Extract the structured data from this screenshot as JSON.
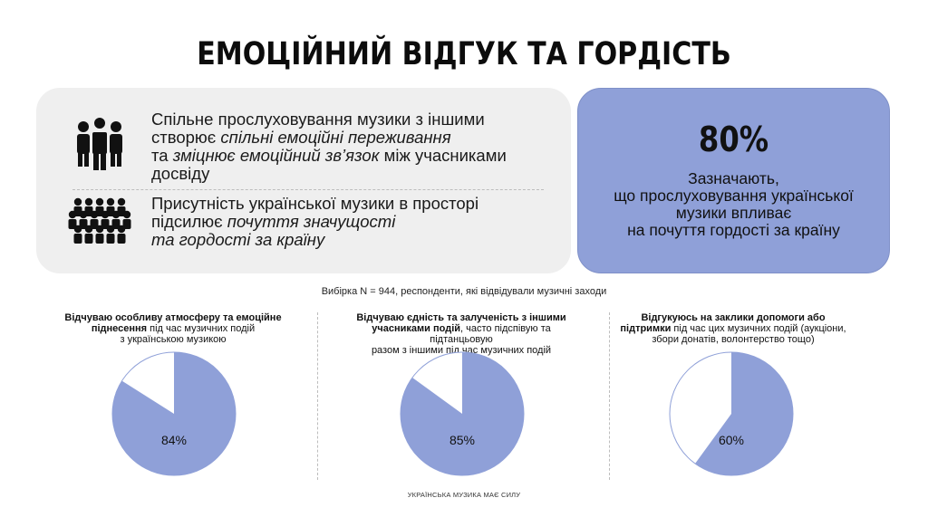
{
  "title": "ЕМОЦІЙНИЙ ВІДГУК ТА ГОРДІСТЬ",
  "left_panel": {
    "row1": {
      "icon": "group-of-people-icon",
      "line1": "Спільне прослуховування музики з іншими",
      "line2_plain": "створює ",
      "line2_italic": "спільні емоційні переживання",
      "line3_plain": "та ",
      "line3_italic": "зміцнює емоційний зв’язок",
      "line3_tail": " між учасниками",
      "line4": "досвіду"
    },
    "row2": {
      "icon": "crowd-icon",
      "line1": "Присутність української музики в просторі",
      "line2_plain": "підсилює ",
      "line2_italic": "почуття значущості",
      "line3_italic": "та гордості за країну"
    }
  },
  "stat": {
    "value": "80%",
    "line1": "Зазначають,",
    "line2": "що прослуховування української",
    "line3": "музики впливає",
    "line4": "на почуття гордості за країну"
  },
  "sample_note": "Вибірка N = 944, респонденти, які відвідували музичні заходи",
  "columns": [
    {
      "bold1": "Відчуваю особливу атмосферу та емоційне",
      "bold2": "піднесення",
      "rest2": " під час музичних подій",
      "line3": "з українською музикою"
    },
    {
      "bold1": "Відчуваю єдність та залученість з іншими",
      "bold2": "учасниками подій",
      "rest2": ", часто підспівую та підтанцьовую",
      "line3": "разом з іншими під час музичних подій"
    },
    {
      "bold1": "Відгукуюсь на заклики допомоги або",
      "bold2": "підтримки",
      "rest2": " під час цих музичних подій (аукціони,",
      "line3": "збори донатів, волонтерство тощо)"
    }
  ],
  "colors": {
    "pie_fill": "#8fa0d8",
    "pie_rest": "#ffffff",
    "pie_stroke": "#8fa0d8",
    "panel_bg": "#efefef"
  },
  "chart_data": [
    {
      "type": "pie",
      "values": [
        84,
        16
      ],
      "labels": [
        "84%",
        ""
      ]
    },
    {
      "type": "pie",
      "values": [
        85,
        15
      ],
      "labels": [
        "85%",
        ""
      ]
    },
    {
      "type": "pie",
      "values": [
        60,
        40
      ],
      "labels": [
        "60%",
        ""
      ]
    }
  ],
  "footer": "УКРАЇНСЬКА МУЗИКА МАЄ СИЛУ"
}
